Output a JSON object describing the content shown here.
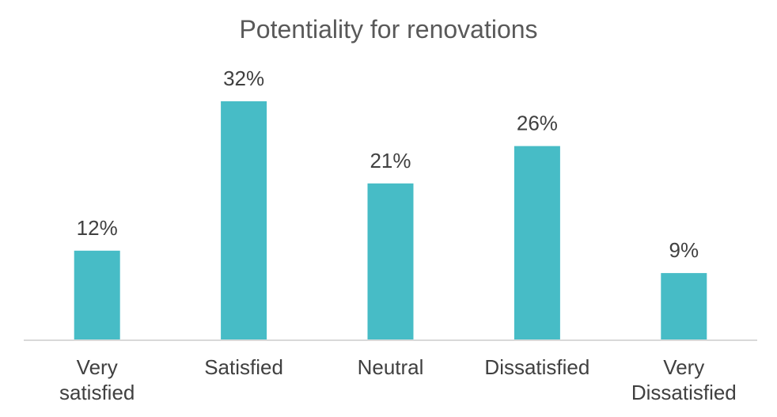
{
  "chart_data": {
    "type": "bar",
    "title": "Potentiality for renovations",
    "categories": [
      "Very satisfied",
      "Satisfied",
      "Neutral",
      "Dissatisfied",
      "Very Dissatisfied"
    ],
    "values": [
      12,
      32,
      21,
      26,
      9
    ],
    "value_labels": [
      "12%",
      "32%",
      "21%",
      "26%",
      "9%"
    ],
    "ylim": [
      0,
      32
    ],
    "grid": false,
    "legend": "none",
    "bar_color": "#47BCC6"
  }
}
